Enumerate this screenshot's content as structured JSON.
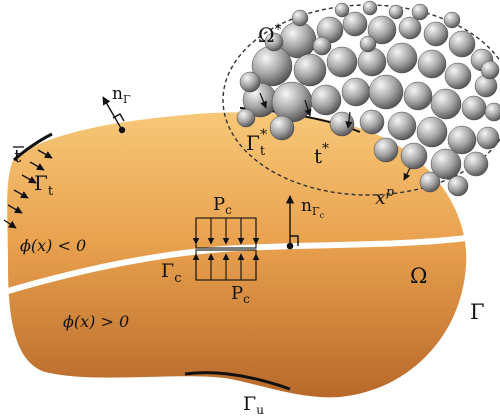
{
  "labels": {
    "n_gamma": "n",
    "n_gamma_sub": "Γ",
    "t_bar": "t",
    "gamma_t": "Γ",
    "gamma_t_sub": "t",
    "gamma_t_star": "Γ",
    "gamma_t_star_sub": "t",
    "gamma_t_star_sup": "*",
    "t_star": "t",
    "t_star_sup": "*",
    "omega_star": "Ω",
    "omega_star_sup": "*",
    "x_p": "x",
    "x_p_sup": "p",
    "p_c_top": "P",
    "p_c_top_sub": "c",
    "p_c_bottom": "P",
    "p_c_bottom_sub": "c",
    "n_gamma_c": "n",
    "n_gamma_c_sub": "Γ",
    "n_gamma_c_subsub": "c",
    "phi_neg": "ϕ(x) < 0",
    "phi_pos": "ϕ(x) > 0",
    "gamma_c": "Γ",
    "gamma_c_sub": "c",
    "omega": "Ω",
    "gamma": "Γ",
    "gamma_u": "Γ",
    "gamma_u_sub": "u"
  },
  "colors": {
    "body_light": "#f6c271",
    "body_mid": "#dc8b3a",
    "body_dark": "#a25a1d",
    "crack": "#ffffff",
    "outline": "#111111",
    "sphere_light": "#f4f4f4",
    "sphere_dark": "#555555"
  }
}
